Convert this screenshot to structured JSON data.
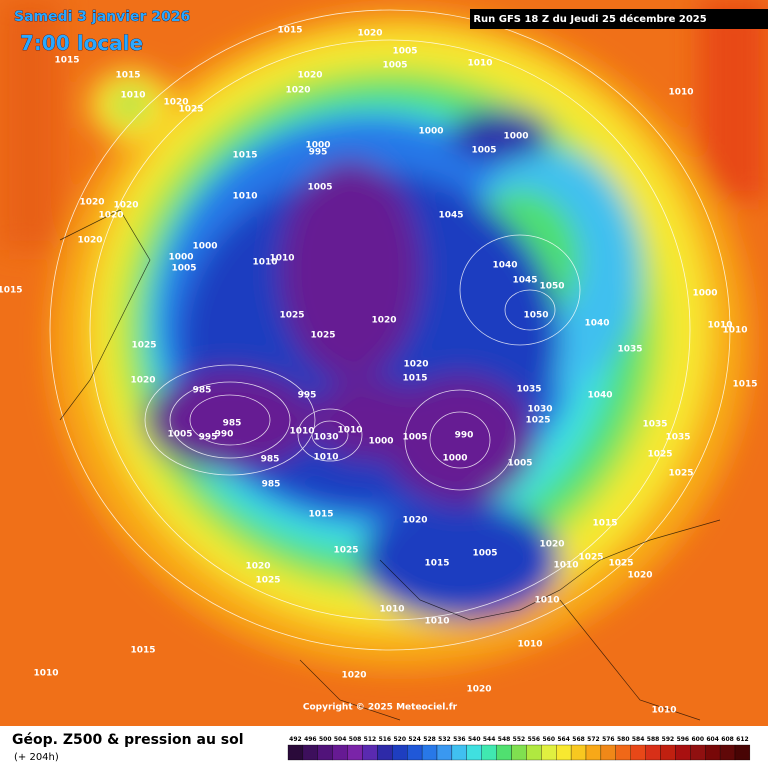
{
  "header": {
    "date": "Samedi 3 janvier 2026",
    "time": "7:00 locale",
    "run": "Run GFS 18 Z du Jeudi 25 décembre 2025"
  },
  "map": {
    "isobar_labels": [
      1015,
      1020,
      1015,
      1005,
      1005,
      1010,
      1015,
      1020,
      1010,
      1020,
      1010,
      1020,
      1025,
      1000,
      1000,
      1000,
      995,
      1005,
      1015,
      1005,
      1010,
      1020,
      1020,
      1020,
      1045,
      1020,
      1000,
      1000,
      1005,
      1010,
      1010,
      1040,
      1045,
      1050,
      1015,
      1000,
      1025,
      1050,
      1020,
      1040,
      1010,
      1010,
      1025,
      1025,
      1035,
      1020,
      1020,
      1015,
      985,
      1035,
      1040,
      995,
      1015,
      1030,
      1025,
      985,
      1005,
      995,
      990,
      1010,
      1030,
      1010,
      1000,
      1005,
      990,
      1035,
      1035,
      1025,
      1000,
      1010,
      985,
      1005,
      1025,
      985,
      1015,
      1020,
      1015,
      1025,
      1005,
      1020,
      1025,
      1010,
      1020,
      1025,
      1020,
      1025,
      1015,
      1010,
      1010,
      1010,
      1010,
      1015,
      1010,
      1020,
      1020,
      1010
    ],
    "copyright": "Copyright © 2025 Meteociel.fr"
  },
  "legend": {
    "title": "Géop. Z500 & pression au sol",
    "subtitle": "(+ 204h)",
    "values": [
      492,
      496,
      500,
      504,
      508,
      512,
      516,
      520,
      524,
      528,
      532,
      536,
      540,
      544,
      548,
      552,
      556,
      560,
      564,
      568,
      572,
      576,
      580,
      584,
      588,
      592,
      596,
      600,
      604,
      608,
      612
    ],
    "colors": [
      "#2a0a3a",
      "#3d0f5c",
      "#51137a",
      "#661a93",
      "#7a24a8",
      "#5a2ab0",
      "#2e2aa8",
      "#1e3ec0",
      "#2058d8",
      "#2878e8",
      "#3a98f0",
      "#40c0f0",
      "#40e0e0",
      "#40e8b0",
      "#50e070",
      "#80e050",
      "#b0e840",
      "#e0f040",
      "#f8e830",
      "#f8c820",
      "#f8a818",
      "#f08818",
      "#f06818",
      "#e84818",
      "#d83018",
      "#c02010",
      "#a81010",
      "#901010",
      "#780808",
      "#600808",
      "#480404"
    ]
  }
}
